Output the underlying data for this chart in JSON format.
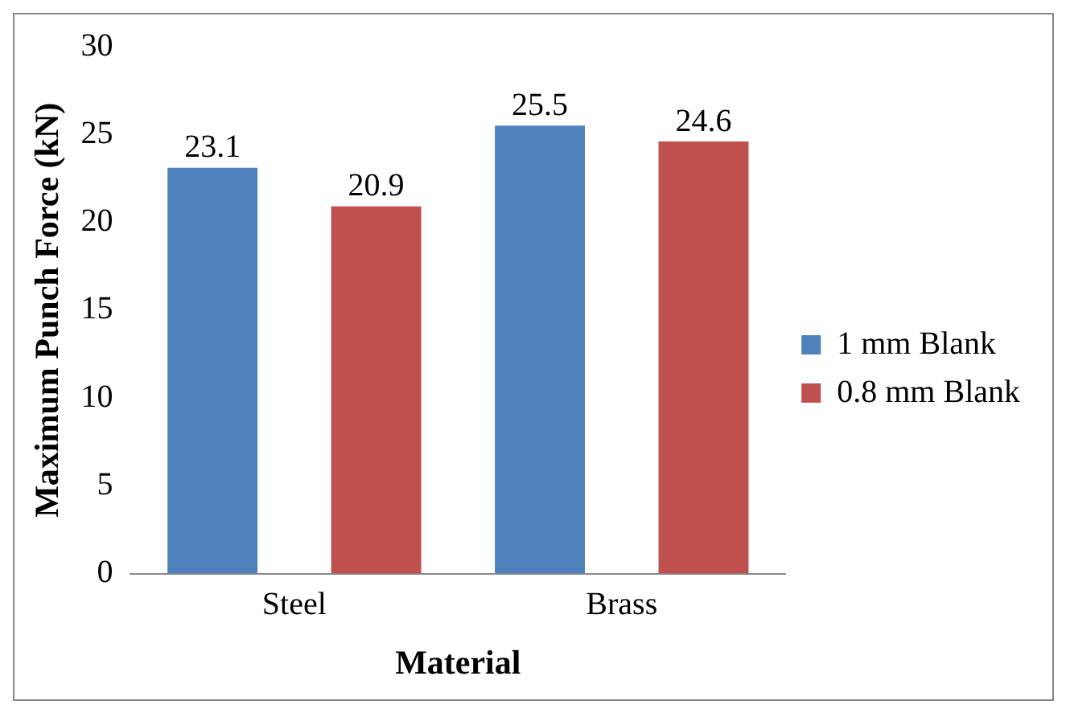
{
  "chart_data": {
    "type": "bar",
    "xlabel": "Material",
    "ylabel": "Maximum Punch Force (kN)",
    "categories": [
      "Steel",
      "Brass"
    ],
    "series": [
      {
        "name": "1 mm Blank",
        "color": "#4f81bd",
        "values": [
          23.1,
          25.5
        ]
      },
      {
        "name": "0.8 mm Blank",
        "color": "#c0504d",
        "values": [
          20.9,
          24.6
        ]
      }
    ],
    "ylim": [
      0,
      30
    ],
    "yticks": [
      0,
      5,
      10,
      15,
      20,
      25,
      30
    ],
    "data_labels": true,
    "legend": "right",
    "grid": false
  }
}
